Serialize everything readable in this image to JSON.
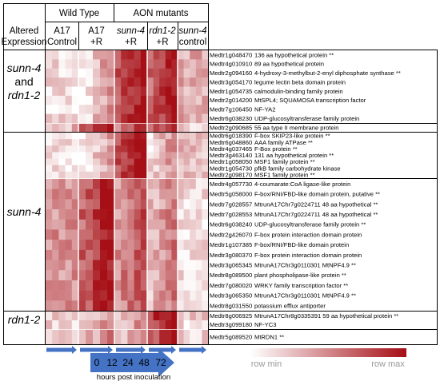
{
  "header": {
    "wild_type": "Wild Type",
    "aon_mutants": "AON mutants",
    "altered_line1": "Altered",
    "altered_line2": "Expression"
  },
  "columns": [
    {
      "line1": "A17",
      "line2": "Control",
      "italic": false
    },
    {
      "line1": "A17",
      "line2": "+R",
      "italic": false
    },
    {
      "line1": "sunn-4",
      "line2": "+R",
      "italic": true
    },
    {
      "line1": "rdn1-2",
      "line2": "+R",
      "italic": true
    },
    {
      "line1": "sunn-4",
      "line2": "control",
      "italic": true
    }
  ],
  "groups": [
    {
      "label_lines": [
        "sunn-4",
        "and",
        "rdn1-2"
      ]
    },
    {
      "label_lines": [
        "sunn-4"
      ]
    },
    {
      "label_lines": [
        "rdn1-2"
      ]
    }
  ],
  "genes": [
    {
      "id": "Medtr1g048470",
      "desc": "136 aa hypothetical protein **"
    },
    {
      "id": "Medtr4g010910",
      "desc": "89 aa hypothetical protein"
    },
    {
      "id": "Medtr2g094160",
      "desc": "4-hydroxy-3-methylbut-2-enyl diphosphate synthase **"
    },
    {
      "id": "Medtr3g054170",
      "desc": "legume lectin beta domain protein"
    },
    {
      "id": "Medtr1g054735",
      "desc": "calmodulin-binding family protein"
    },
    {
      "id": "Medtr2g014200",
      "desc": "MtSPL4; SQUAMOSA transcription factor"
    },
    {
      "id": "Medtr7g106450",
      "desc": "NF-YA2"
    },
    {
      "id": "Medtr6g038230",
      "desc": "UDP-glucosyltransferase family protein"
    },
    {
      "id": "Medtr2g090685",
      "desc": "55 aa type II membrane protein"
    },
    {
      "id": "Medtr6g018390",
      "desc": "F-box SKIP23-like protein **"
    },
    {
      "id": "Medtr6g048860",
      "desc": "AAA family ATPase **"
    },
    {
      "id": "Medtr4g037465",
      "desc": "F-Box protein **"
    },
    {
      "id": "Medtr3g463140",
      "desc": "131 aa hypothetical protein **"
    },
    {
      "id": "Medtr1g058050",
      "desc": "MSF1 family protein **"
    },
    {
      "id": "Medtr1g054730",
      "desc": "pfkB family carbohydrate kinase"
    },
    {
      "id": "Medtr2g098170",
      "desc": "MSF1 family protein **"
    },
    {
      "id": "Medtr4g057730",
      "desc": "4-coumarate:CoA ligase-like protein"
    },
    {
      "id": "Medtr5g058000",
      "desc": "F-box/RNI/FBD-like domain protein, putative **"
    },
    {
      "id": "Medtr7g028557",
      "desc": "MtrunA17Chr7g0224711 48 aa hypothetical **"
    },
    {
      "id": "Medtr7g028553",
      "desc": "MtrunA17Chr7g0224711 48 aa hypothetical **"
    },
    {
      "id": "Medtr6g038240",
      "desc": "UDP-glucosyltransferase family protein **"
    },
    {
      "id": "Medtr2g426070",
      "desc": "F-box protein interaction domain protein"
    },
    {
      "id": "Medtr1g107385",
      "desc": "F-box/RNI/FBD-like domain protein"
    },
    {
      "id": "Medtr3g080370",
      "desc": "F-box protein interaction domain protein"
    },
    {
      "id": "Medtr3g065345",
      "desc": "MtrunA17Chr3g0110301 MtNPF4.9 **"
    },
    {
      "id": "Medtr8g089500",
      "desc": "plant phospholipase-like protein **"
    },
    {
      "id": "Medtr7g080020",
      "desc": "WRKY family transcription factor **"
    },
    {
      "id": "Medtr3g065350",
      "desc": "MtrunA17Chr3g0110301 MtNPF4.9 **"
    },
    {
      "id": "Medtr8g031550",
      "desc": "potassium efflux antiporter"
    },
    {
      "id": "Medtr8g006925",
      "desc": "MtrunA17Chr8g0335391 59 aa hypothetical protein **"
    },
    {
      "id": "Medtr3g099180",
      "desc": "NF-YC3"
    },
    {
      "id": "Medtr5g089520",
      "desc": "MtRDN1 **"
    }
  ],
  "legend": {
    "min_label": "row min",
    "max_label": "row max",
    "color_min": "#ffffff",
    "color_max": "#a50f15"
  },
  "timeline": {
    "ticks": [
      "0",
      "12",
      "24",
      "48",
      "72"
    ],
    "caption": "hours post inoculation",
    "arrow_color": "#4472c4"
  },
  "colors": {
    "heat_low": "#ffffff",
    "heat_high": "#a50f15",
    "separator": "#ffffff"
  }
}
